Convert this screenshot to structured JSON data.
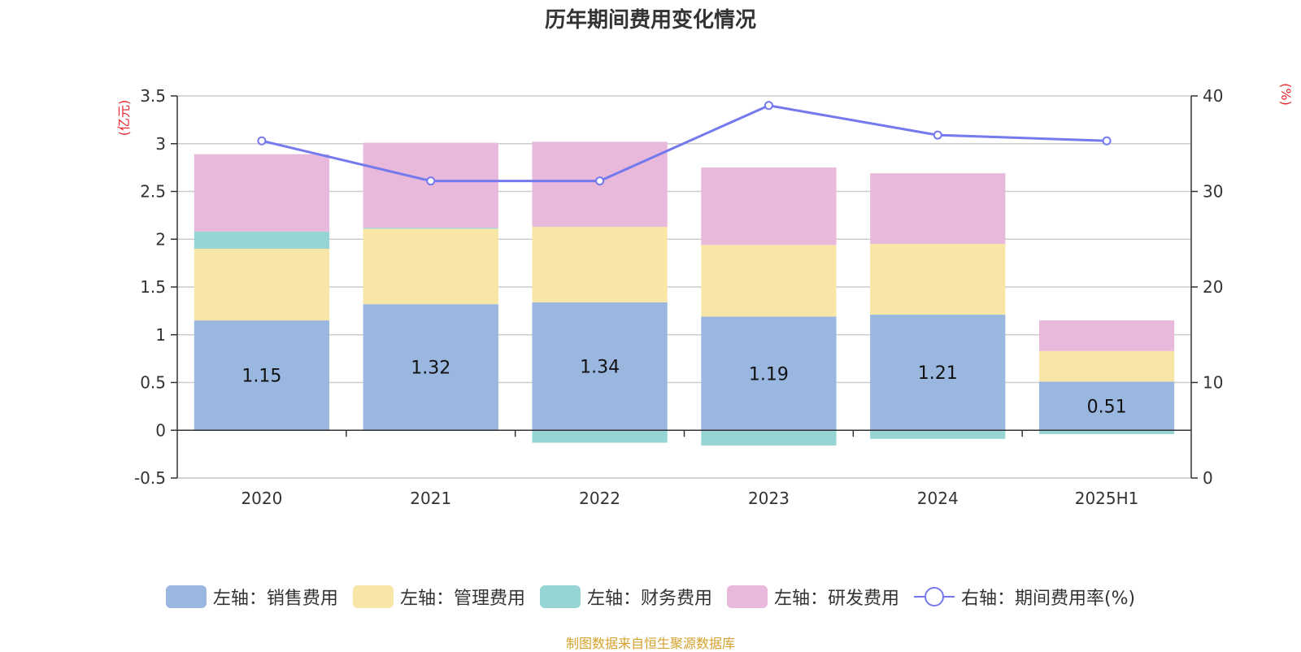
{
  "chart_data": {
    "type": "bar",
    "title": "历年期间费用变化情况",
    "categories": [
      "2020",
      "2021",
      "2022",
      "2023",
      "2024",
      "2025H1"
    ],
    "left_axis": {
      "unit": "(亿元)",
      "ylim": [
        -0.5,
        3.5
      ],
      "ticks": [
        "3.5",
        "3",
        "2.5",
        "2",
        "1.5",
        "1",
        "0.5",
        "0",
        "-0.5"
      ],
      "tick_values": [
        3.5,
        3,
        2.5,
        2,
        1.5,
        1,
        0.5,
        0,
        -0.5
      ]
    },
    "right_axis": {
      "unit": "(%)",
      "ylim": [
        0,
        40
      ],
      "ticks": [
        "40",
        "30",
        "20",
        "10",
        "0"
      ],
      "tick_values": [
        40,
        30,
        20,
        10,
        0
      ]
    },
    "stacked": true,
    "series": [
      {
        "name": "左轴：销售费用",
        "axis": "left",
        "type": "bar",
        "color": "#9ab7e0",
        "values": [
          1.15,
          1.32,
          1.34,
          1.19,
          1.21,
          0.51
        ],
        "labels": [
          "1.15",
          "1.32",
          "1.34",
          "1.19",
          "1.21",
          "0.51"
        ]
      },
      {
        "name": "左轴：管理费用",
        "axis": "left",
        "type": "bar",
        "color": "#f8e6a6",
        "values": [
          0.75,
          0.79,
          0.79,
          0.75,
          0.74,
          0.32
        ]
      },
      {
        "name": "左轴：财务费用",
        "axis": "left",
        "type": "bar",
        "color": "#97d4d4",
        "values": [
          0.18,
          0.01,
          -0.13,
          -0.16,
          -0.09,
          -0.04
        ]
      },
      {
        "name": "左轴：研发费用",
        "axis": "left",
        "type": "bar",
        "color": "#e8b9db",
        "values": [
          0.81,
          0.89,
          0.89,
          0.81,
          0.74,
          0.32
        ]
      },
      {
        "name": "右轴：期间费用率(%)",
        "axis": "right",
        "type": "line",
        "color": "#7579ee",
        "values": [
          35.3,
          31.1,
          31.1,
          39.0,
          35.9,
          35.3
        ]
      }
    ],
    "grid": true,
    "legend_position": "bottom"
  },
  "source_text": "制图数据来自恒生聚源数据库"
}
